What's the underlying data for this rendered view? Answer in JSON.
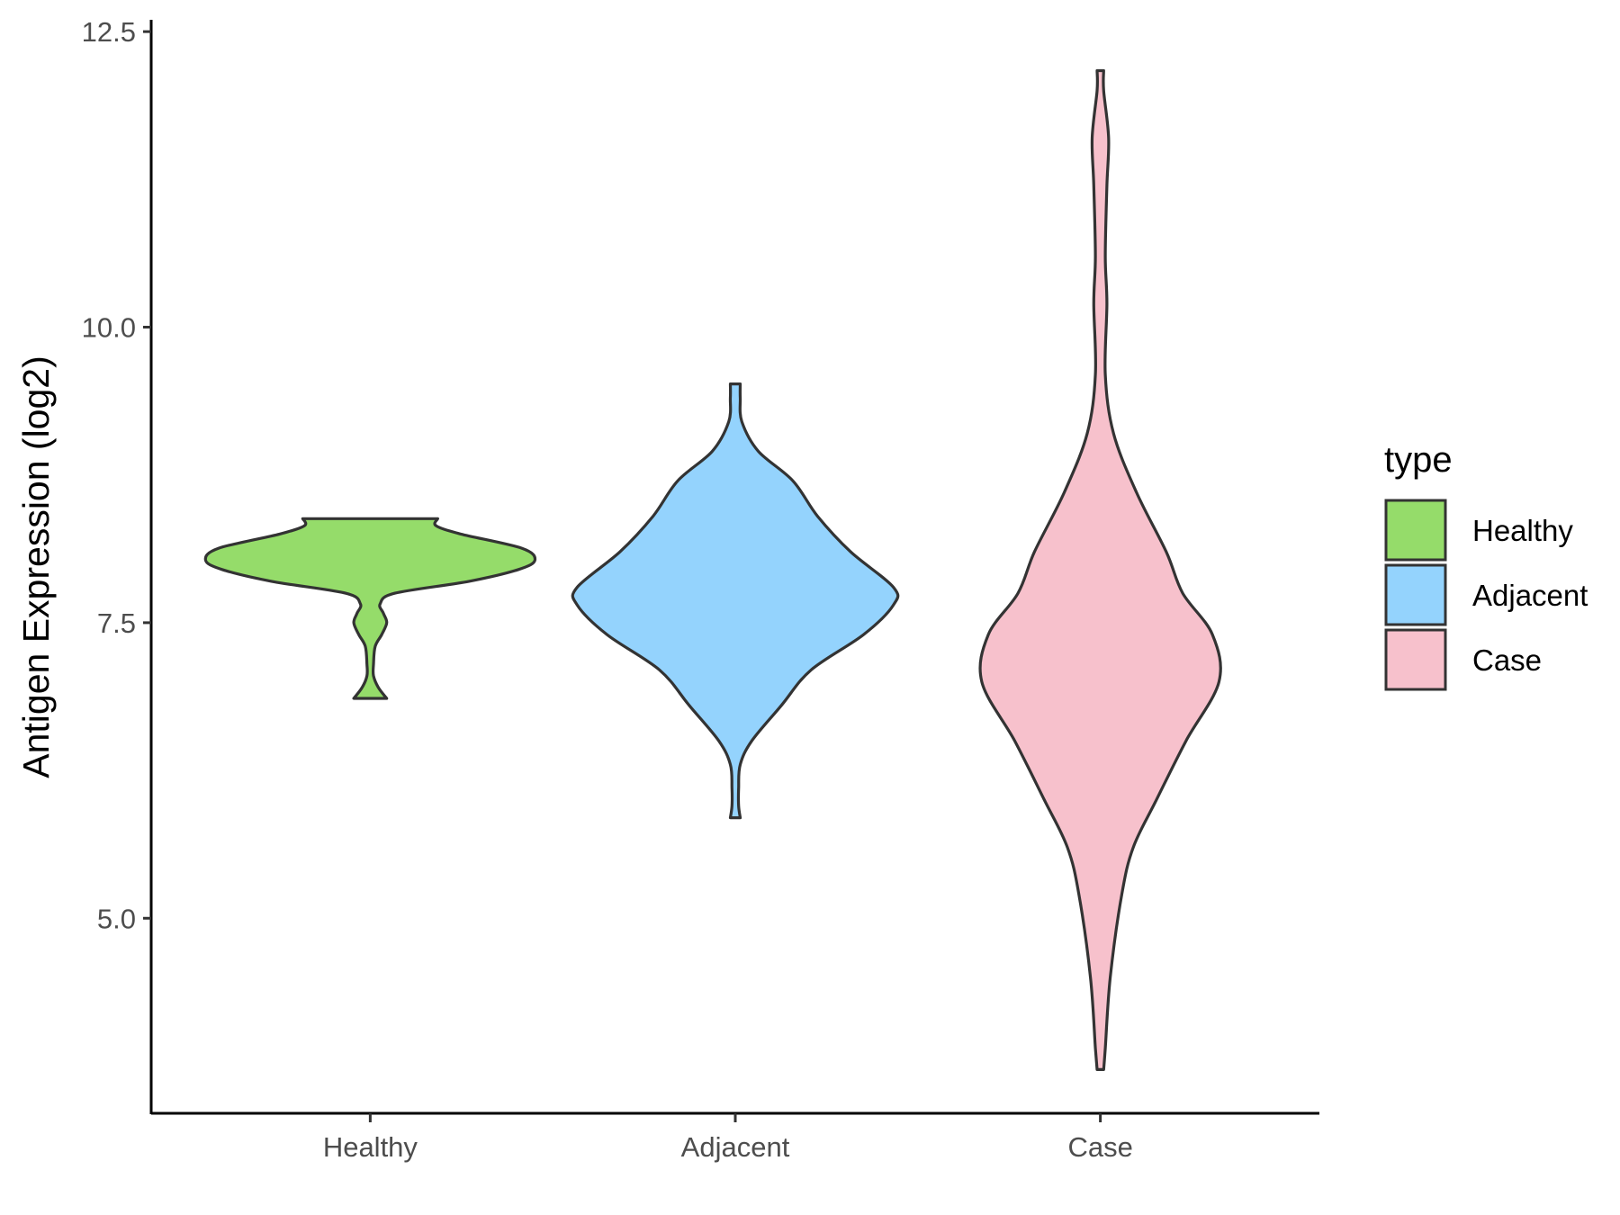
{
  "chart_data": {
    "type": "violin",
    "ylabel": "Antigen Expression (log2)",
    "xlabel": "",
    "categories": [
      "Healthy",
      "Adjacent",
      "Case"
    ],
    "ylim": [
      3.35,
      12.6
    ],
    "yticks": [
      5.0,
      7.5,
      10.0,
      12.5
    ],
    "ytick_labels": [
      "5.0",
      "7.5",
      "10.0",
      "12.5"
    ],
    "grid": false,
    "legend": {
      "title": "type",
      "position": "right",
      "entries": [
        "Healthy",
        "Adjacent",
        "Case"
      ]
    },
    "colors": {
      "Healthy": "#95dc6a",
      "Adjacent": "#94d3fd",
      "Case": "#f7c1cc",
      "outline": "#333333",
      "axis": "#000000"
    },
    "series": [
      {
        "name": "Healthy",
        "profile": [
          [
            6.86,
            0.1
          ],
          [
            6.95,
            0.05
          ],
          [
            7.05,
            0.02
          ],
          [
            7.15,
            0.02
          ],
          [
            7.3,
            0.03
          ],
          [
            7.4,
            0.07
          ],
          [
            7.5,
            0.1
          ],
          [
            7.58,
            0.08
          ],
          [
            7.66,
            0.06
          ],
          [
            7.75,
            0.15
          ],
          [
            7.85,
            0.6
          ],
          [
            7.95,
            0.9
          ],
          [
            8.03,
            1.0
          ],
          [
            8.13,
            0.92
          ],
          [
            8.25,
            0.55
          ],
          [
            8.32,
            0.4
          ],
          [
            8.38,
            0.41
          ]
        ]
      },
      {
        "name": "Adjacent",
        "profile": [
          [
            5.85,
            0.03
          ],
          [
            5.95,
            0.02
          ],
          [
            6.1,
            0.02
          ],
          [
            6.3,
            0.03
          ],
          [
            6.5,
            0.1
          ],
          [
            6.8,
            0.28
          ],
          [
            7.1,
            0.46
          ],
          [
            7.4,
            0.78
          ],
          [
            7.65,
            0.96
          ],
          [
            7.8,
            0.96
          ],
          [
            8.1,
            0.7
          ],
          [
            8.4,
            0.5
          ],
          [
            8.7,
            0.35
          ],
          [
            8.95,
            0.14
          ],
          [
            9.2,
            0.04
          ],
          [
            9.4,
            0.03
          ],
          [
            9.52,
            0.03
          ]
        ]
      },
      {
        "name": "Case",
        "profile": [
          [
            3.72,
            0.02
          ],
          [
            3.9,
            0.03
          ],
          [
            4.5,
            0.06
          ],
          [
            5.2,
            0.13
          ],
          [
            5.6,
            0.2
          ],
          [
            6.0,
            0.34
          ],
          [
            6.5,
            0.52
          ],
          [
            7.0,
            0.72
          ],
          [
            7.4,
            0.68
          ],
          [
            7.75,
            0.5
          ],
          [
            8.1,
            0.4
          ],
          [
            8.6,
            0.22
          ],
          [
            9.1,
            0.08
          ],
          [
            9.6,
            0.03
          ],
          [
            10.2,
            0.04
          ],
          [
            10.6,
            0.03
          ],
          [
            11.2,
            0.04
          ],
          [
            11.6,
            0.05
          ],
          [
            12.0,
            0.02
          ],
          [
            12.17,
            0.02
          ]
        ]
      }
    ]
  }
}
